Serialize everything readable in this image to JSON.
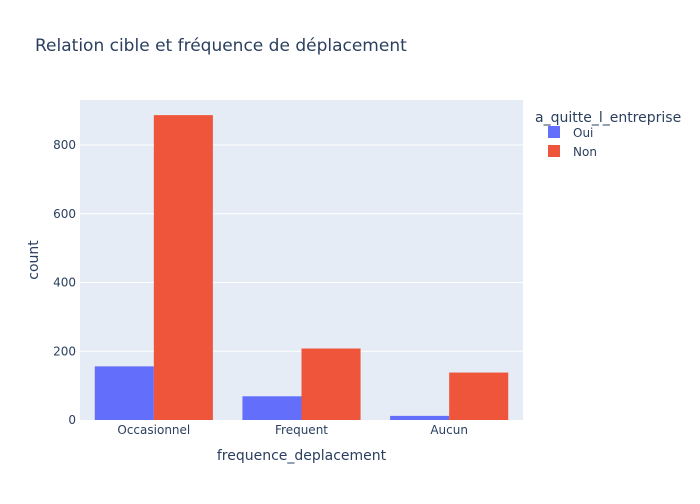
{
  "chart_data": {
    "type": "bar",
    "title": "Relation cible et fréquence de déplacement",
    "xlabel": "frequence_deplacement",
    "ylabel": "count",
    "categories": [
      "Occasionnel",
      "Frequent",
      "Aucun"
    ],
    "series": [
      {
        "name": "Oui",
        "values": [
          156,
          69,
          12
        ],
        "color": "#636efa"
      },
      {
        "name": "Non",
        "values": [
          887,
          208,
          138
        ],
        "color": "#ef553b"
      }
    ],
    "ylim": [
      0,
      931
    ],
    "yticks": [
      0,
      200,
      400,
      600,
      800
    ],
    "legend": {
      "title": "a_quitte_l_entreprise",
      "placement": "top-right"
    },
    "grid": true,
    "plot_bgcolor": "#e5ecf6",
    "gridcolor": "#ffffff"
  }
}
